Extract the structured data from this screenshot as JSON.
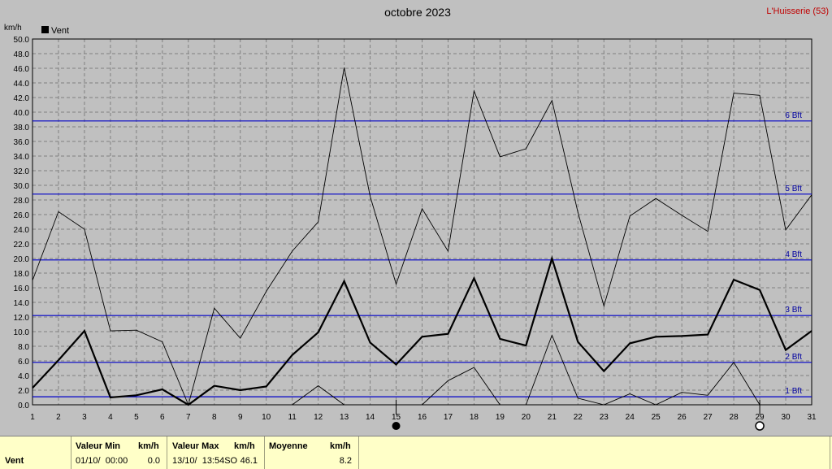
{
  "header": {
    "title": "octobre 2023",
    "station": "L'Huisserie (53)"
  },
  "chart_data": {
    "type": "line",
    "ylabel": "km/h",
    "ylim": [
      0,
      50
    ],
    "yticks": [
      "0.0",
      "2.0",
      "4.0",
      "6.0",
      "8.0",
      "10.0",
      "12.0",
      "14.0",
      "16.0",
      "18.0",
      "20.0",
      "22.0",
      "24.0",
      "26.0",
      "28.0",
      "30.0",
      "32.0",
      "34.0",
      "36.0",
      "38.0",
      "40.0",
      "42.0",
      "44.0",
      "46.0",
      "48.0",
      "50.0"
    ],
    "x": [
      1,
      2,
      3,
      4,
      5,
      6,
      7,
      8,
      9,
      10,
      11,
      12,
      13,
      14,
      15,
      16,
      17,
      18,
      19,
      20,
      21,
      22,
      23,
      24,
      25,
      26,
      27,
      28,
      29,
      30,
      31
    ],
    "grid": true,
    "legend": "top-left",
    "series": [
      {
        "name": "Vent",
        "role": "mean",
        "values": [
          2.3,
          6.1,
          10.1,
          1.0,
          1.3,
          2.1,
          0.0,
          2.6,
          2.0,
          2.5,
          6.8,
          9.9,
          16.9,
          8.5,
          5.5,
          9.3,
          9.7,
          17.3,
          9.0,
          8.1,
          20.0,
          8.6,
          4.6,
          8.4,
          9.3,
          9.4,
          9.6,
          17.1,
          15.7,
          7.5,
          10.1
        ]
      },
      {
        "name": "",
        "role": "max",
        "values": [
          17.0,
          26.4,
          24.0,
          10.1,
          10.2,
          8.6,
          0.0,
          13.2,
          9.1,
          15.5,
          21.0,
          25.0,
          46.1,
          28.5,
          16.5,
          26.8,
          21.0,
          42.9,
          33.9,
          35.0,
          41.6,
          26.3,
          13.5,
          25.8,
          28.2,
          25.9,
          23.7,
          42.6,
          42.3,
          23.9,
          28.7
        ]
      },
      {
        "name": "",
        "role": "min",
        "values": [
          0.0,
          0.0,
          0.0,
          0.0,
          0.0,
          0.0,
          0.0,
          0.0,
          0.0,
          0.0,
          0.0,
          2.6,
          0.0,
          0.0,
          0.0,
          0.0,
          3.3,
          5.1,
          0.0,
          0.0,
          9.5,
          0.9,
          0.0,
          1.5,
          0.0,
          1.7,
          1.3,
          5.8,
          0.0,
          0.0,
          0.0
        ]
      }
    ],
    "beaufort": [
      {
        "label": "1 Bft",
        "value": 1.1
      },
      {
        "label": "2 Bft",
        "value": 5.8
      },
      {
        "label": "3 Bft",
        "value": 12.2
      },
      {
        "label": "4 Bft",
        "value": 19.8
      },
      {
        "label": "5 Bft",
        "value": 28.8
      },
      {
        "label": "6 Bft",
        "value": 38.8
      }
    ],
    "moon_phases": [
      {
        "day": 15,
        "phase": "new-moon"
      },
      {
        "day": 29,
        "phase": "full-moon"
      }
    ]
  },
  "summary": {
    "row_label": "Vent",
    "min": {
      "label": "Valeur Min",
      "unit": "km/h",
      "date": "01/10/  00:00",
      "value": "0.0"
    },
    "max": {
      "label": "Valeur Max",
      "unit": "km/h",
      "date": "13/10/  13:54SO",
      "value": "46.1"
    },
    "mean": {
      "label": "Moyenne",
      "unit": "km/h",
      "value": "8.2"
    }
  },
  "colors": {
    "background": "#c0c0c0",
    "beaufort_line": "#0000c8",
    "series": "#000000",
    "summary_bg": "#ffffc8",
    "station": "#c00000"
  }
}
